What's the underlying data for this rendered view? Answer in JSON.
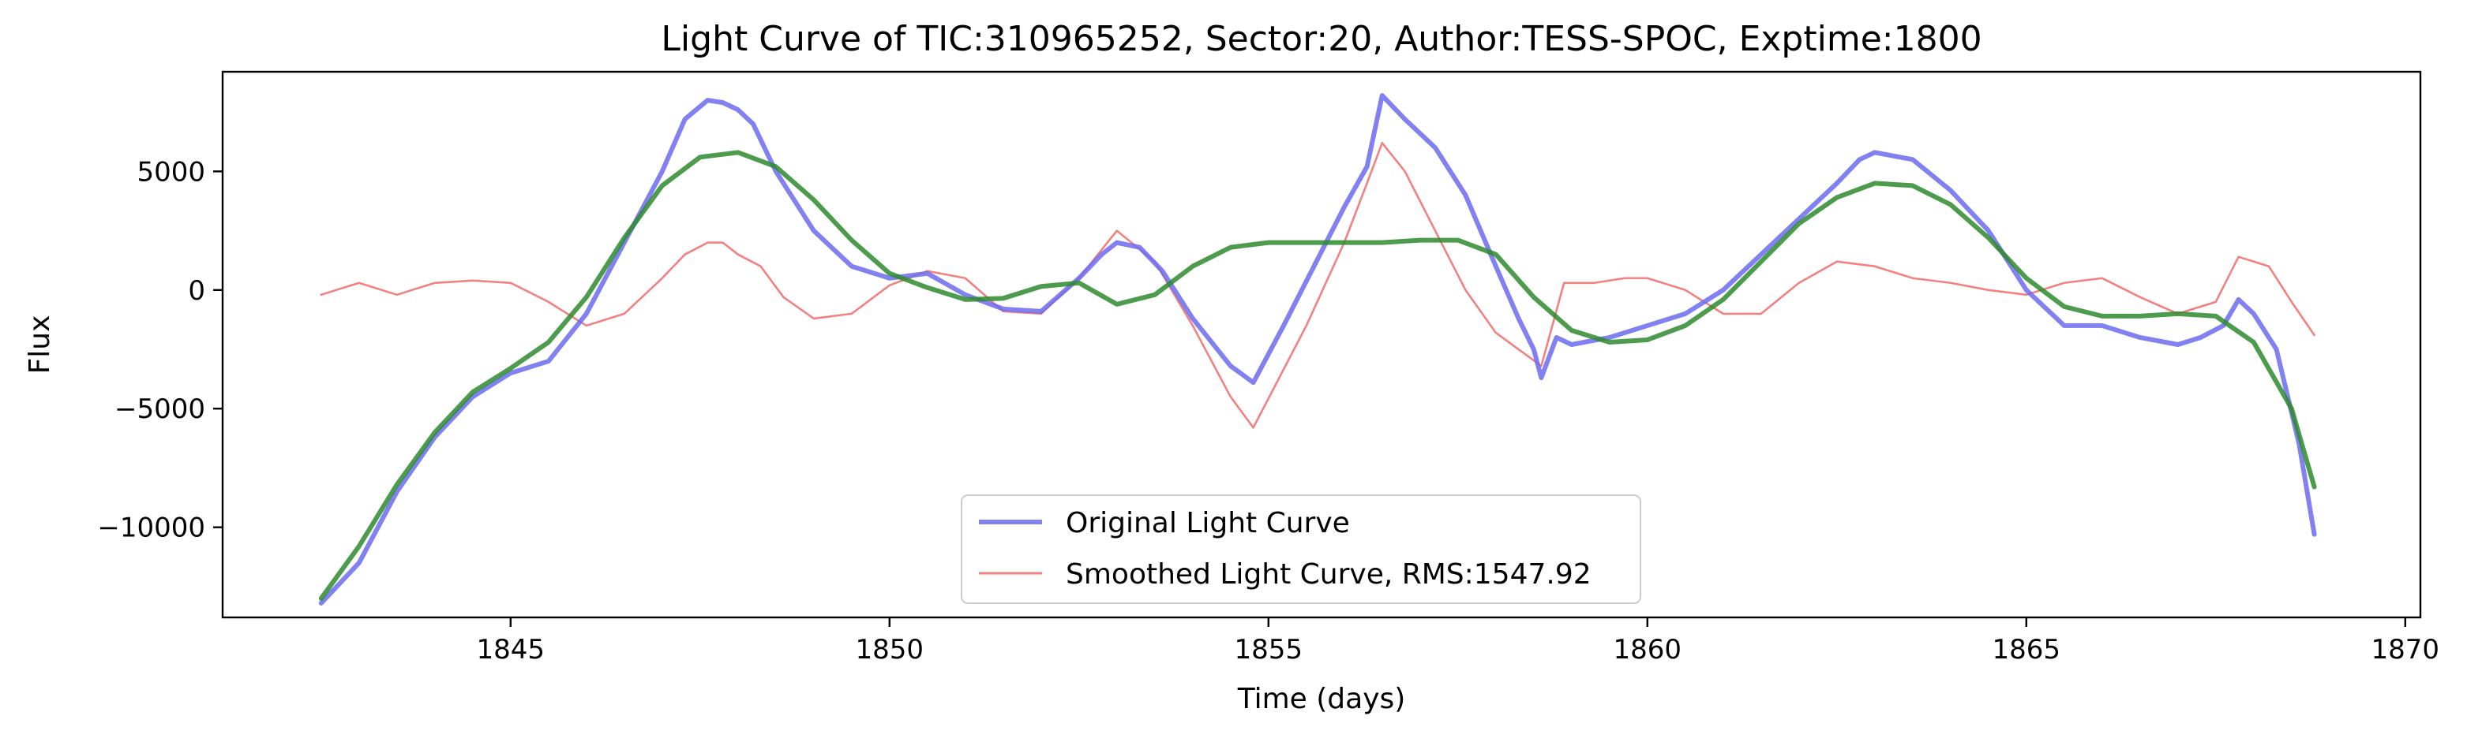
{
  "chart_data": {
    "type": "line",
    "title": "Light Curve of TIC:310965252, Sector:20, Author:TESS-SPOC, Exptime:1800",
    "xlabel": "Time (days)",
    "ylabel": "Flux",
    "xlim": [
      1841.2,
      1870.2
    ],
    "ylim": [
      -13800,
      9200
    ],
    "xticks": [
      1845,
      1850,
      1855,
      1860,
      1865,
      1870
    ],
    "yticks": [
      -10000,
      -5000,
      0,
      5000
    ],
    "ytick_labels": [
      "−10000",
      "−5000",
      "0",
      "5000"
    ],
    "grid": false,
    "legend_position": "lower-center",
    "series": [
      {
        "name": "Original Light Curve",
        "color": "#6b6bf0",
        "x": [
          1842.5,
          1843.0,
          1843.5,
          1844.0,
          1844.5,
          1845.0,
          1845.5,
          1846.0,
          1846.5,
          1847.0,
          1847.3,
          1847.6,
          1847.8,
          1848.0,
          1848.2,
          1848.5,
          1849.0,
          1849.5,
          1850.0,
          1850.5,
          1851.0,
          1851.5,
          1852.0,
          1852.5,
          1852.8,
          1853.0,
          1853.3,
          1853.6,
          1854.0,
          1854.5,
          1854.8,
          1855.2,
          1855.6,
          1856.0,
          1856.3,
          1856.5,
          1856.8,
          1857.2,
          1857.6,
          1858.0,
          1858.3,
          1858.5,
          1858.6,
          1858.8,
          1859.0,
          1859.5,
          1860.0,
          1860.5,
          1861.0,
          1861.5,
          1862.0,
          1862.5,
          1862.8,
          1863.0,
          1863.5,
          1864.0,
          1864.5,
          1865.0,
          1865.5,
          1866.0,
          1866.5,
          1867.0,
          1867.3,
          1867.6,
          1867.8,
          1868.0,
          1868.3,
          1868.6,
          1868.8
        ],
        "y": [
          -13200,
          -11500,
          -8500,
          -6200,
          -4500,
          -3500,
          -3000,
          -1000,
          2000,
          5000,
          7200,
          8000,
          7900,
          7600,
          7000,
          5000,
          2500,
          1000,
          500,
          700,
          -200,
          -800,
          -900,
          500,
          1500,
          2000,
          1800,
          800,
          -1200,
          -3200,
          -3900,
          -1500,
          1000,
          3500,
          5200,
          8200,
          7200,
          6000,
          4000,
          1000,
          -1200,
          -2500,
          -3700,
          -2000,
          -2300,
          -2000,
          -1500,
          -1000,
          0,
          1500,
          3000,
          4500,
          5500,
          5800,
          5500,
          4200,
          2500,
          0,
          -1500,
          -1500,
          -2000,
          -2300,
          -2000,
          -1500,
          -400,
          -1000,
          -2500,
          -6500,
          -10300
        ]
      },
      {
        "name": "Smoothed Light Curve, RMS:1547.92",
        "color": "#f06b6b",
        "x": [
          1842.5,
          1843.0,
          1843.5,
          1844.0,
          1844.5,
          1845.0,
          1845.5,
          1846.0,
          1846.5,
          1847.0,
          1847.3,
          1847.6,
          1847.8,
          1848.0,
          1848.3,
          1848.6,
          1849.0,
          1849.5,
          1850.0,
          1850.5,
          1851.0,
          1851.5,
          1852.0,
          1852.5,
          1853.0,
          1853.5,
          1854.0,
          1854.5,
          1854.8,
          1855.5,
          1856.0,
          1856.3,
          1856.5,
          1856.8,
          1857.2,
          1857.6,
          1858.0,
          1858.3,
          1858.6,
          1858.9,
          1859.3,
          1859.7,
          1860.0,
          1860.5,
          1861.0,
          1861.5,
          1862.0,
          1862.5,
          1863.0,
          1863.5,
          1864.0,
          1864.5,
          1865.0,
          1865.5,
          1866.0,
          1866.5,
          1867.0,
          1867.5,
          1867.8,
          1868.2,
          1868.5,
          1868.8
        ],
        "y": [
          -200,
          300,
          -200,
          300,
          400,
          300,
          -500,
          -1500,
          -1000,
          500,
          1500,
          2000,
          2000,
          1500,
          1000,
          -300,
          -1200,
          -1000,
          200,
          800,
          500,
          -900,
          -1000,
          500,
          2500,
          1200,
          -1500,
          -4500,
          -5800,
          -1500,
          2000,
          4500,
          6200,
          5000,
          2500,
          0,
          -1800,
          -2500,
          -3200,
          300,
          300,
          500,
          500,
          0,
          -1000,
          -1000,
          300,
          1200,
          1000,
          500,
          300,
          0,
          -200,
          300,
          500,
          -300,
          -1000,
          -500,
          1400,
          1000,
          -500,
          -1900
        ]
      },
      {
        "name": "",
        "color": "#2e8b2e",
        "x": [
          1842.5,
          1843.0,
          1843.5,
          1844.0,
          1844.5,
          1845.0,
          1845.5,
          1846.0,
          1846.5,
          1847.0,
          1847.5,
          1848.0,
          1848.5,
          1849.0,
          1849.5,
          1850.0,
          1850.5,
          1851.0,
          1851.5,
          1852.0,
          1852.5,
          1853.0,
          1853.5,
          1854.0,
          1854.5,
          1855.0,
          1855.5,
          1856.0,
          1856.5,
          1857.0,
          1857.5,
          1858.0,
          1858.5,
          1859.0,
          1859.5,
          1860.0,
          1860.5,
          1861.0,
          1861.5,
          1862.0,
          1862.5,
          1863.0,
          1863.5,
          1864.0,
          1864.5,
          1865.0,
          1865.5,
          1866.0,
          1866.5,
          1867.0,
          1867.5,
          1868.0,
          1868.5,
          1868.8
        ],
        "y": [
          -13000,
          -10800,
          -8200,
          -6000,
          -4300,
          -3300,
          -2200,
          -300,
          2200,
          4400,
          5600,
          5800,
          5200,
          3800,
          2100,
          700,
          100,
          -400,
          -350,
          150,
          300,
          -600,
          -200,
          1000,
          1800,
          2000,
          2000,
          2000,
          2000,
          2100,
          2100,
          1500,
          -300,
          -1700,
          -2200,
          -2100,
          -1500,
          -400,
          1200,
          2800,
          3900,
          4500,
          4400,
          3600,
          2200,
          500,
          -700,
          -1100,
          -1100,
          -1000,
          -1100,
          -2200,
          -5000,
          -8300
        ]
      }
    ]
  }
}
